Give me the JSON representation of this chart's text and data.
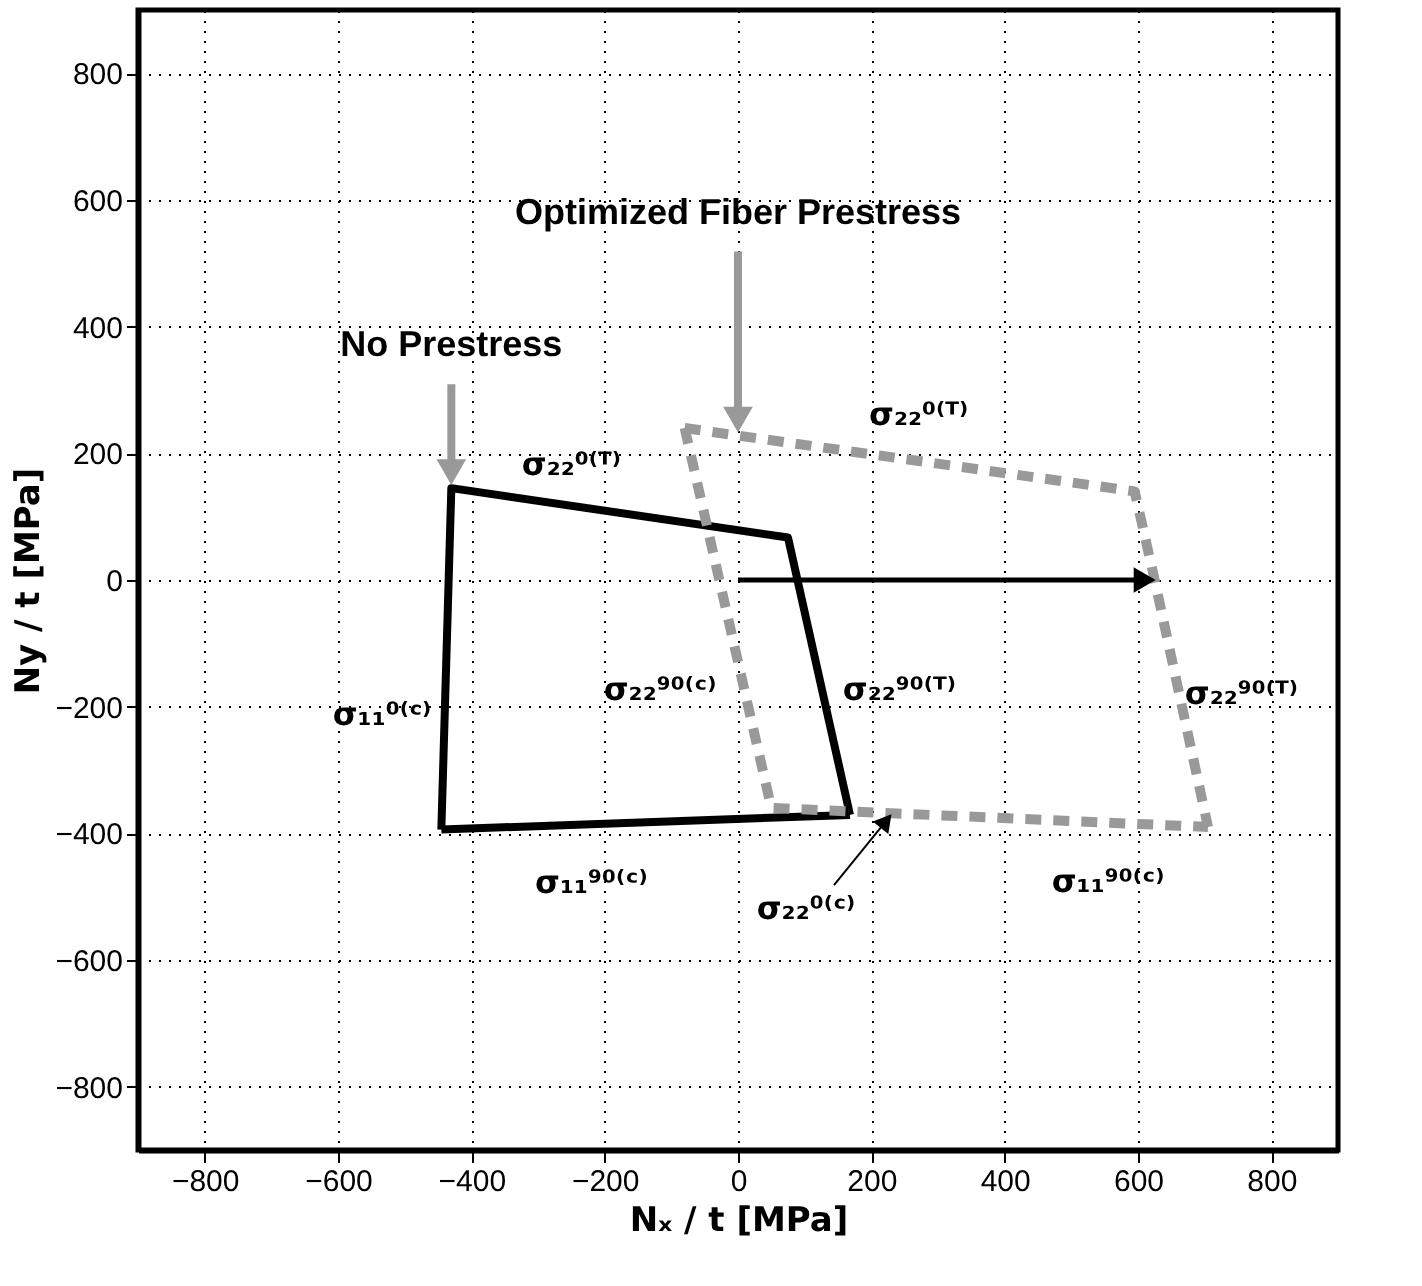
{
  "chart_data": {
    "type": "line",
    "xlabel": "Nₓ / t  [MPa]",
    "ylabel": "Ny / t  [MPa]",
    "series": [
      {
        "name": "No Prestress",
        "color": "#000000",
        "line_style": "solid",
        "x": [
          -445,
          -430,
          75,
          168
        ],
        "values": [
          -394,
          145,
          67,
          -371
        ]
      },
      {
        "color": "#000000",
        "line_style": "solid",
        "x": [
          -445,
          168
        ],
        "values": [
          -394,
          -371
        ]
      },
      {
        "name": "Optimized Fiber Prestress",
        "color": "#999999",
        "line_style": "dashed",
        "x": [
          -80,
          0,
          595,
          625,
          705
        ],
        "values": [
          240,
          228,
          140,
          0,
          -390
        ]
      },
      {
        "color": "#999999",
        "line_style": "dashed",
        "x": [
          -80,
          50,
          705
        ],
        "values": [
          240,
          -360,
          -390
        ]
      }
    ],
    "xlim": [
      -900,
      900
    ],
    "ylim": [
      -900,
      900
    ],
    "xticks": [
      -800,
      -600,
      -400,
      -200,
      0,
      200,
      400,
      600,
      800
    ],
    "yticks": [
      -800,
      -600,
      -400,
      -200,
      0,
      200,
      400,
      600,
      800
    ],
    "grid": true,
    "legend": false,
    "annotations": [
      {
        "text": "σ₂₂⁰⁽ᵀ⁾",
        "x": -178,
        "y": 106
      },
      {
        "text": "σ₂₂⁰⁽ᵀ⁾",
        "x": 298,
        "y": 184
      },
      {
        "text": "σ₁₁⁰⁽ᶜ⁾",
        "x": -438,
        "y": -125
      },
      {
        "text": "σ₂₂⁹⁰⁽ᶜ⁾",
        "x": -15,
        "y": -60
      },
      {
        "text": "σ₂₂⁹⁰⁽ᵀ⁾",
        "x": 122,
        "y": -152
      },
      {
        "text": "σ₂₂⁹⁰⁽ᵀ⁾",
        "x": 665,
        "y": -195
      },
      {
        "text": "σ₁₁⁹⁰⁽ᶜ⁾",
        "x": -139,
        "y": -383
      },
      {
        "text": "σ₂₂⁰⁽ᶜ⁾",
        "x": 222,
        "y": -368
      },
      {
        "text": "σ₁₁⁹⁰⁽ᶜ⁾",
        "x": 378,
        "y": -375
      }
    ]
  }
}
